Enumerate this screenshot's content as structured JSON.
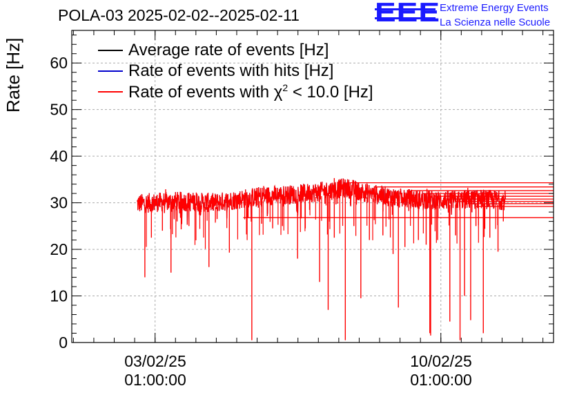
{
  "chart_data": {
    "type": "line",
    "title": "POLA-03 2025-02-02--2025-02-11",
    "ylabel": "Rate [Hz]",
    "xlabel": "",
    "ylim": [
      0,
      67
    ],
    "yticks": [
      0,
      10,
      20,
      30,
      40,
      50,
      60
    ],
    "xticks": [
      {
        "date": "03/02/25",
        "time": "01:00:00",
        "day": 1.04
      },
      {
        "date": "10/02/25",
        "time": "01:00:00",
        "day": 8.04
      }
    ],
    "xlim_days": [
      -1.0,
      10.8
    ],
    "grid": true,
    "legend_placement": "top-left",
    "series": [
      {
        "name": "Average rate of events [Hz]",
        "color": "#000000"
      },
      {
        "name": "Rate of events with hits [Hz]",
        "color": "#0000cc"
      },
      {
        "name": "Rate of events with χ² < 10.0 [Hz]",
        "color": "#ff0000"
      }
    ],
    "legend_chi_prefix": "Rate of events with χ",
    "legend_chi_sup": "2",
    "legend_chi_suffix": " < 10.0 [Hz]",
    "data_start_day": 0.6,
    "data_end_day": 9.62,
    "baseline": [
      {
        "day": 0.6,
        "value": 29.8
      },
      {
        "day": 1.5,
        "value": 30.3
      },
      {
        "day": 2.5,
        "value": 30.0
      },
      {
        "day": 3.0,
        "value": 30.6
      },
      {
        "day": 3.7,
        "value": 31.5
      },
      {
        "day": 4.5,
        "value": 31.8
      },
      {
        "day": 5.3,
        "value": 32.6
      },
      {
        "day": 5.7,
        "value": 33.2
      },
      {
        "day": 6.3,
        "value": 32.0
      },
      {
        "day": 7.0,
        "value": 31.0
      },
      {
        "day": 8.0,
        "value": 30.5
      },
      {
        "day": 9.0,
        "value": 30.8
      },
      {
        "day": 9.62,
        "value": 30.5
      }
    ],
    "dips": [
      {
        "day": 0.79,
        "value": 14.0
      },
      {
        "day": 0.95,
        "value": 22.5
      },
      {
        "day": 1.22,
        "value": 24.0
      },
      {
        "day": 1.43,
        "value": 15.0
      },
      {
        "day": 1.58,
        "value": 26.0
      },
      {
        "day": 1.68,
        "value": 24.3
      },
      {
        "day": 1.87,
        "value": 25.0
      },
      {
        "day": 2.36,
        "value": 16.2
      },
      {
        "day": 2.56,
        "value": 26.5
      },
      {
        "day": 2.86,
        "value": 19.3
      },
      {
        "day": 3.41,
        "value": 0.5
      },
      {
        "day": 3.65,
        "value": 25.5
      },
      {
        "day": 3.92,
        "value": 24.5
      },
      {
        "day": 4.16,
        "value": 25.0
      },
      {
        "day": 4.53,
        "value": 18.0
      },
      {
        "day": 4.72,
        "value": 24.5
      },
      {
        "day": 5.07,
        "value": 13.0
      },
      {
        "day": 5.28,
        "value": 7.0
      },
      {
        "day": 5.43,
        "value": 22.5
      },
      {
        "day": 5.7,
        "value": 0.5
      },
      {
        "day": 5.91,
        "value": 25.0
      },
      {
        "day": 6.08,
        "value": 9.5
      },
      {
        "day": 6.29,
        "value": 22.0
      },
      {
        "day": 6.62,
        "value": 23.0
      },
      {
        "day": 6.87,
        "value": 19.0
      },
      {
        "day": 7.0,
        "value": 7.5
      },
      {
        "day": 7.16,
        "value": 20.5
      },
      {
        "day": 7.49,
        "value": 22.0
      },
      {
        "day": 7.68,
        "value": 21.0
      },
      {
        "day": 7.77,
        "value": 2.0
      },
      {
        "day": 7.79,
        "value": 1.5
      },
      {
        "day": 7.96,
        "value": 22.0
      },
      {
        "day": 8.26,
        "value": 4.5
      },
      {
        "day": 8.4,
        "value": 23.0
      },
      {
        "day": 8.51,
        "value": 0.5
      },
      {
        "day": 8.62,
        "value": 10.0
      },
      {
        "day": 8.77,
        "value": 4.8
      },
      {
        "day": 8.9,
        "value": 25.0
      },
      {
        "day": 9.08,
        "value": 2.0
      },
      {
        "day": 9.24,
        "value": 22.5
      },
      {
        "day": 9.44,
        "value": 19.5
      },
      {
        "day": 9.57,
        "value": 26.0
      }
    ],
    "spikes": [
      {
        "day": 1.3,
        "value": 32.9
      },
      {
        "day": 2.05,
        "value": 32.2
      },
      {
        "day": 3.7,
        "value": 33.6
      },
      {
        "day": 4.4,
        "value": 33.2
      },
      {
        "day": 5.43,
        "value": 35.3
      },
      {
        "day": 6.2,
        "value": 33.5
      },
      {
        "day": 7.7,
        "value": 33.0
      },
      {
        "day": 8.7,
        "value": 33.2
      }
    ],
    "trailing_lines": [
      {
        "from_day": 5.8,
        "value": 34.3
      },
      {
        "from_day": 6.4,
        "value": 33.4
      },
      {
        "from_day": 7.3,
        "value": 32.6
      },
      {
        "from_day": 7.6,
        "value": 32.0
      },
      {
        "from_day": 7.9,
        "value": 31.4
      },
      {
        "from_day": 8.2,
        "value": 30.8
      },
      {
        "from_day": 8.4,
        "value": 30.3
      },
      {
        "from_day": 8.7,
        "value": 29.8
      },
      {
        "from_day": 8.9,
        "value": 29.2
      },
      {
        "from_day": 3.2,
        "value": 26.8
      }
    ]
  },
  "logo": {
    "text": "EEE",
    "line1": "Extreme Energy Events",
    "line2": "La Scienza nelle Scuole",
    "color": "#1a1aff"
  }
}
